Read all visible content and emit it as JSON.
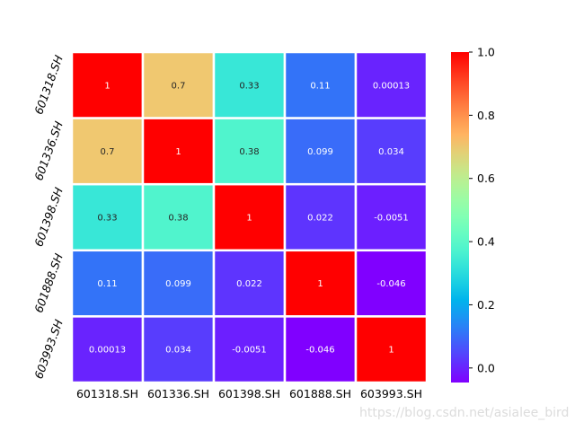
{
  "chart_data": {
    "type": "heatmap",
    "x_labels": [
      "601318.SH",
      "601336.SH",
      "601398.SH",
      "601888.SH",
      "603993.SH"
    ],
    "y_labels": [
      "601318.SH",
      "601336.SH",
      "601398.SH",
      "601888.SH",
      "603993.SH"
    ],
    "values": [
      [
        1,
        0.7,
        0.33,
        0.11,
        0.00013
      ],
      [
        0.7,
        1,
        0.38,
        0.099,
        0.034
      ],
      [
        0.33,
        0.38,
        1,
        0.022,
        -0.0051
      ],
      [
        0.11,
        0.099,
        0.022,
        1,
        -0.046
      ],
      [
        0.00013,
        0.034,
        -0.0051,
        -0.046,
        1
      ]
    ],
    "cell_labels": [
      [
        "1",
        "0.7",
        "0.33",
        "0.11",
        "0.00013"
      ],
      [
        "0.7",
        "1",
        "0.38",
        "0.099",
        "0.034"
      ],
      [
        "0.33",
        "0.38",
        "1",
        "0.022",
        "-0.0051"
      ],
      [
        "0.11",
        "0.099",
        "0.022",
        "1",
        "-0.046"
      ],
      [
        "0.00013",
        "0.034",
        "-0.0051",
        "-0.046",
        "1"
      ]
    ],
    "colormap": "rainbow",
    "colorbar": {
      "vmin": -0.046,
      "vmax": 1.0,
      "ticks": [
        0.0,
        0.2,
        0.4,
        0.6,
        0.8,
        1.0
      ],
      "tick_labels": [
        "0.0",
        "0.2",
        "0.4",
        "0.6",
        "0.8",
        "1.0"
      ]
    },
    "cell_border_color": "#ffffff",
    "title": "",
    "xlabel": "",
    "ylabel": ""
  },
  "watermark": "https://blog.csdn.net/asialee_bird"
}
